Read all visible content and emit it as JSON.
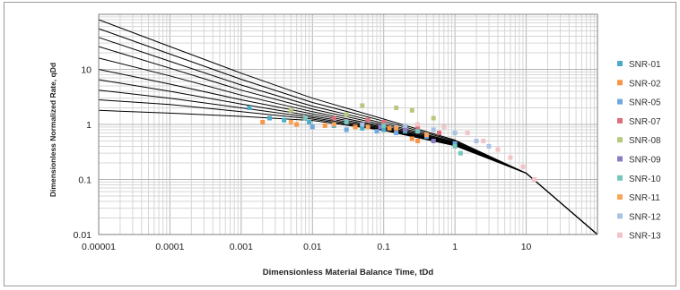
{
  "chart_data": {
    "type": "scatter",
    "title": "",
    "xlabel": "Dimensionless Material Balance Time, tDd",
    "ylabel": "Dimensionless Normalized Rate, qDd",
    "x_scale": "log",
    "y_scale": "log",
    "xlim": [
      1e-05,
      100
    ],
    "ylim": [
      0.01,
      100
    ],
    "x_tick_labels": [
      "0.00001",
      "0.0001",
      "0.001",
      "0.01",
      "0.1",
      "1",
      "10"
    ],
    "y_tick_labels": [
      "0.01",
      "0.1",
      "1",
      "10"
    ],
    "grid": true,
    "legend_position": "right",
    "type_curve_color": "#000000",
    "type_curves": [
      {
        "x": [
          1e-05,
          0.0001,
          0.001,
          0.01,
          0.1,
          1,
          10,
          100
        ],
        "y": [
          80,
          26,
          8.5,
          3.0,
          1.25,
          0.52,
          0.13,
          0.01
        ]
      },
      {
        "x": [
          1e-05,
          0.0001,
          0.001,
          0.01,
          0.1,
          1,
          10,
          100
        ],
        "y": [
          55,
          19,
          6.6,
          2.5,
          1.15,
          0.5,
          0.13,
          0.01
        ]
      },
      {
        "x": [
          1e-05,
          0.0001,
          0.001,
          0.01,
          0.1,
          1,
          10,
          100
        ],
        "y": [
          38,
          14,
          5.2,
          2.15,
          1.05,
          0.48,
          0.13,
          0.01
        ]
      },
      {
        "x": [
          1e-05,
          0.0001,
          0.001,
          0.01,
          0.1,
          1,
          10,
          100
        ],
        "y": [
          26,
          10.5,
          4.2,
          1.9,
          0.98,
          0.47,
          0.13,
          0.01
        ]
      },
      {
        "x": [
          1e-05,
          0.0001,
          0.001,
          0.01,
          0.1,
          1,
          10,
          100
        ],
        "y": [
          16,
          7.6,
          3.4,
          1.7,
          0.92,
          0.46,
          0.13,
          0.01
        ]
      },
      {
        "x": [
          1e-05,
          0.0001,
          0.001,
          0.01,
          0.1,
          1,
          10,
          100
        ],
        "y": [
          10,
          5.4,
          2.8,
          1.55,
          0.88,
          0.45,
          0.13,
          0.01
        ]
      },
      {
        "x": [
          1e-05,
          0.0001,
          0.001,
          0.01,
          0.1,
          1,
          10,
          100
        ],
        "y": [
          6.5,
          4.0,
          2.35,
          1.42,
          0.85,
          0.44,
          0.13,
          0.01
        ]
      },
      {
        "x": [
          1e-05,
          0.0001,
          0.001,
          0.01,
          0.1,
          1,
          10,
          100
        ],
        "y": [
          4.2,
          3.0,
          2.0,
          1.33,
          0.82,
          0.43,
          0.13,
          0.01
        ]
      },
      {
        "x": [
          1e-05,
          0.0001,
          0.001,
          0.01,
          0.1,
          1,
          10,
          100
        ],
        "y": [
          2.8,
          2.3,
          1.7,
          1.25,
          0.8,
          0.42,
          0.13,
          0.01
        ]
      },
      {
        "x": [
          1e-05,
          0.0001,
          0.001,
          0.01,
          0.1,
          1,
          10,
          100
        ],
        "y": [
          1.8,
          1.6,
          1.4,
          1.18,
          0.78,
          0.41,
          0.13,
          0.01
        ]
      }
    ],
    "series": [
      {
        "name": "SNR-01",
        "color": "#4bacc6",
        "x": [
          0.0013,
          0.0025,
          0.004,
          0.009,
          0.02,
          0.05,
          0.1,
          0.2
        ],
        "y": [
          2.0,
          1.3,
          1.2,
          1.1,
          0.95,
          0.85,
          0.8,
          0.75
        ]
      },
      {
        "name": "SNR-02",
        "color": "#f79646",
        "x": [
          0.002,
          0.006,
          0.015,
          0.04,
          0.12,
          0.25,
          0.3
        ],
        "y": [
          1.1,
          1.0,
          0.95,
          0.9,
          0.85,
          0.55,
          0.5
        ]
      },
      {
        "name": "SNR-05",
        "color": "#6fa8dc",
        "x": [
          0.01,
          0.03,
          0.08,
          0.15,
          0.4,
          1.0
        ],
        "y": [
          0.9,
          0.8,
          0.75,
          0.7,
          0.6,
          0.45
        ]
      },
      {
        "name": "SNR-07",
        "color": "#d9707a",
        "x": [
          0.02,
          0.06,
          0.1,
          0.3,
          0.6
        ],
        "y": [
          1.3,
          1.2,
          1.1,
          0.9,
          0.7
        ]
      },
      {
        "name": "SNR-08",
        "color": "#b7c97e",
        "x": [
          0.005,
          0.03,
          0.05,
          0.15,
          0.25,
          0.5
        ],
        "y": [
          1.8,
          1.5,
          2.2,
          2.0,
          1.8,
          1.3
        ]
      },
      {
        "name": "SNR-09",
        "color": "#8e7cc3",
        "x": [
          0.05,
          0.09,
          0.2,
          0.5
        ],
        "y": [
          1.0,
          0.9,
          0.8,
          0.5
        ]
      },
      {
        "name": "SNR-10",
        "color": "#76c7c0",
        "x": [
          0.008,
          0.03,
          0.1,
          0.3,
          1.0,
          1.2
        ],
        "y": [
          1.3,
          1.1,
          0.95,
          0.75,
          0.4,
          0.3
        ]
      },
      {
        "name": "SNR-11",
        "color": "#f9a65a",
        "x": [
          0.005,
          0.02,
          0.06,
          0.15,
          0.4
        ],
        "y": [
          1.1,
          1.0,
          0.9,
          0.85,
          0.65
        ]
      },
      {
        "name": "SNR-12",
        "color": "#a9c4e3",
        "x": [
          0.05,
          0.2,
          0.5,
          1.0,
          2.0,
          3.0
        ],
        "y": [
          1.0,
          0.95,
          0.8,
          0.7,
          0.5,
          0.4
        ]
      },
      {
        "name": "SNR-13",
        "color": "#f2c4c8",
        "x": [
          0.3,
          0.7,
          1.5,
          2.5,
          4.0,
          6.0,
          9.0,
          13.0
        ],
        "y": [
          1.0,
          0.9,
          0.7,
          0.5,
          0.35,
          0.25,
          0.17,
          0.1
        ]
      }
    ]
  }
}
